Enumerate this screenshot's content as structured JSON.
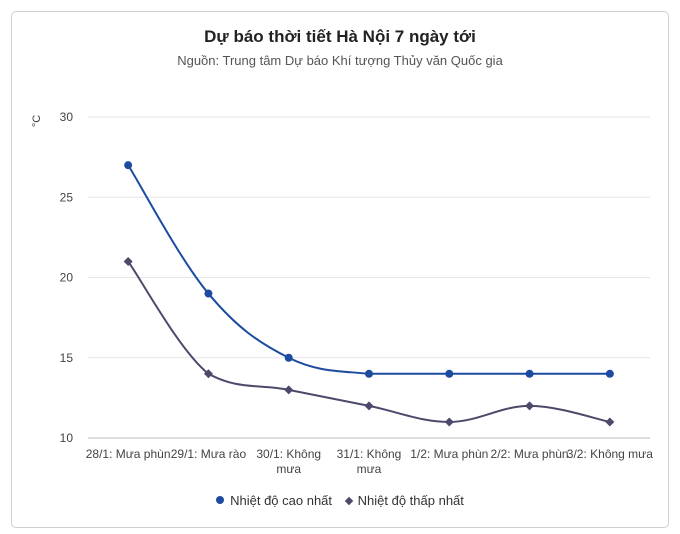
{
  "chart_data": {
    "type": "line",
    "title": "Dự báo thời tiết Hà Nội 7 ngày tới",
    "subtitle": "Nguồn: Trung tâm Dự báo Khí tượng Thủy văn Quốc gia",
    "ylabel": "°C",
    "xlabel": "",
    "ylim": [
      10,
      30
    ],
    "yticks": [
      10,
      15,
      20,
      25,
      30
    ],
    "grid": true,
    "legend_position": "bottom-center",
    "categories": [
      "28/1: Mưa phùn",
      "29/1: Mưa rào",
      "30/1: Không mưa",
      "31/1: Không mưa",
      "1/2: Mưa phùn",
      "2/2: Mưa phùn",
      "3/2: Không mưa"
    ],
    "series": [
      {
        "name": "Nhiệt độ cao nhất",
        "values": [
          27,
          19,
          15,
          14,
          14,
          14,
          14
        ],
        "color": "#1c4ba0",
        "marker": "circle"
      },
      {
        "name": "Nhiệt độ thấp nhất",
        "values": [
          21,
          14,
          13,
          12,
          11,
          12,
          11
        ],
        "color": "#4b4a6b",
        "marker": "diamond"
      }
    ]
  }
}
